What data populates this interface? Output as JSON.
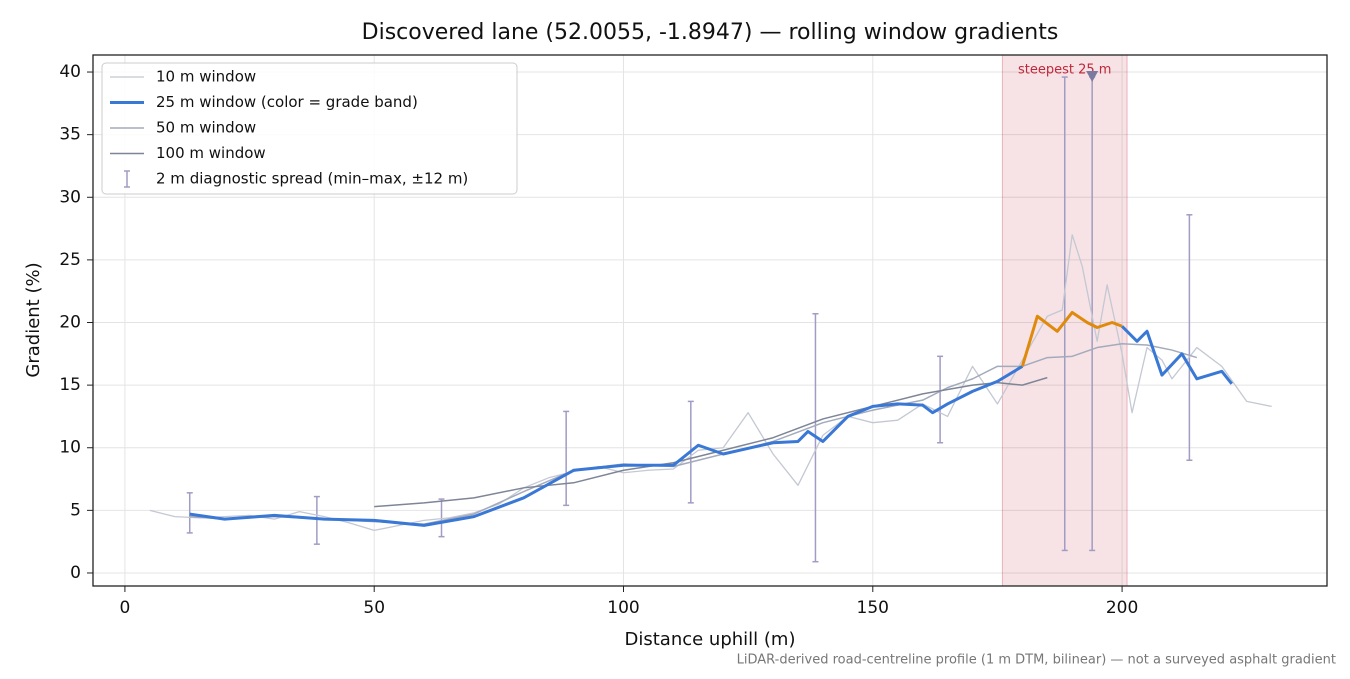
{
  "chart_data": {
    "type": "line",
    "title": "Discovered lane (52.0055, -1.8947) — rolling window gradients",
    "x_label": "Distance uphill (m)",
    "y_label": "Gradient (%)",
    "footnote": "LiDAR-derived road-centreline profile (1 m DTM, bilinear) — not a surveyed asphalt gradient",
    "xlim": [
      -6.4,
      241.1
    ],
    "ylim": [
      -1.04,
      41.36
    ],
    "xticks": [
      0,
      50,
      100,
      150,
      200
    ],
    "yticks": [
      0,
      5,
      10,
      15,
      20,
      25,
      30,
      35,
      40
    ],
    "grid": true,
    "legend": "upper left",
    "series": [
      {
        "name": "10 m window",
        "color": "#c3c8d3",
        "width": 1.3,
        "x": [
          5,
          10,
          15,
          20,
          25,
          30,
          35,
          40,
          45,
          50,
          55,
          60,
          65,
          70,
          75,
          80,
          85,
          90,
          95,
          100,
          105,
          110,
          115,
          120,
          125,
          130,
          135,
          140,
          145,
          150,
          155,
          160,
          165,
          170,
          175,
          180,
          185,
          188,
          190,
          192,
          195,
          197,
          200,
          202,
          205,
          208,
          210,
          215,
          220,
          225,
          230
        ],
        "values": [
          5.0,
          4.5,
          4.4,
          4.5,
          4.6,
          4.3,
          4.9,
          4.5,
          4.0,
          3.4,
          3.8,
          4.2,
          4.4,
          4.8,
          5.5,
          6.8,
          7.6,
          8.1,
          8.5,
          8.0,
          8.2,
          8.3,
          9.8,
          10.0,
          12.8,
          9.5,
          7.0,
          11.0,
          12.5,
          12.0,
          12.2,
          13.5,
          12.5,
          16.5,
          13.5,
          17.0,
          20.5,
          21.0,
          27.0,
          24.5,
          18.5,
          23.0,
          17.5,
          12.8,
          18.0,
          17.0,
          15.5,
          18.0,
          16.5,
          13.7,
          13.3
        ]
      },
      {
        "name": "25 m window (color = grade band)",
        "color": "#3a78d6",
        "width": 3,
        "grade_bands": [
          {
            "from": 20,
            "color": "#e08a0b"
          }
        ],
        "x": [
          13,
          20,
          30,
          40,
          50,
          60,
          70,
          80,
          90,
          100,
          110,
          115,
          120,
          130,
          135,
          137,
          140,
          145,
          150,
          155,
          160,
          162,
          165,
          170,
          175,
          180,
          183,
          187,
          190,
          193,
          195,
          198,
          200,
          203,
          205,
          208,
          212,
          215,
          220,
          222
        ],
        "values": [
          4.7,
          4.3,
          4.6,
          4.3,
          4.2,
          3.8,
          4.5,
          6.0,
          8.2,
          8.6,
          8.6,
          10.2,
          9.5,
          10.4,
          10.5,
          11.3,
          10.5,
          12.5,
          13.3,
          13.5,
          13.4,
          12.8,
          13.5,
          14.5,
          15.3,
          16.5,
          20.5,
          19.3,
          20.8,
          20.0,
          19.6,
          20.0,
          19.7,
          18.5,
          19.3,
          15.8,
          17.5,
          15.5,
          16.1,
          15.1
        ]
      },
      {
        "name": "50 m window",
        "color": "#a3aabb",
        "width": 1.5,
        "x": [
          13,
          20,
          30,
          40,
          50,
          60,
          70,
          80,
          90,
          100,
          110,
          120,
          130,
          140,
          150,
          160,
          165,
          170,
          175,
          180,
          185,
          190,
          195,
          200,
          205,
          210,
          215
        ],
        "values": [
          4.5,
          4.3,
          4.5,
          4.3,
          4.1,
          3.9,
          4.7,
          6.5,
          8.2,
          8.7,
          8.5,
          9.5,
          10.5,
          12.0,
          13.0,
          13.8,
          14.8,
          15.5,
          16.5,
          16.5,
          17.2,
          17.3,
          18.0,
          18.3,
          18.2,
          17.8,
          17.2
        ]
      },
      {
        "name": "100 m window",
        "color": "#7e8596",
        "width": 1.5,
        "x": [
          50,
          60,
          70,
          80,
          90,
          100,
          110,
          120,
          130,
          140,
          150,
          160,
          170,
          175,
          180,
          185
        ],
        "values": [
          5.3,
          5.6,
          6.0,
          6.8,
          7.2,
          8.2,
          8.8,
          9.8,
          10.8,
          12.3,
          13.3,
          14.3,
          15.0,
          15.2,
          15.0,
          15.6
        ]
      }
    ],
    "errorbars": {
      "name": "2 m diagnostic spread (min–max, ±12 m)",
      "color": "#a09cc4",
      "x": [
        13,
        38.5,
        63.5,
        88.5,
        113.5,
        138.5,
        163.5,
        188.5,
        194,
        213.5
      ],
      "low": [
        3.2,
        2.3,
        2.9,
        5.4,
        5.6,
        0.9,
        10.4,
        1.8,
        1.8,
        9.0
      ],
      "high": [
        6.4,
        6.1,
        5.9,
        12.9,
        13.7,
        20.7,
        17.3,
        39.6,
        39.6,
        28.6
      ]
    },
    "highlight": {
      "label": "steepest 25 m",
      "color": "#c0283a",
      "xspan": [
        176,
        201
      ],
      "marker_x": 194,
      "marker_y": 39.6
    }
  }
}
